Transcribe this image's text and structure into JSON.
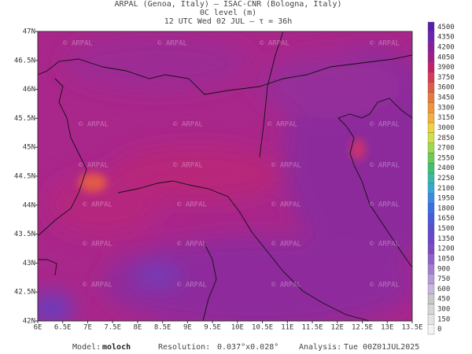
{
  "header": {
    "line1": "ARPAL (Genoa, Italy)  –  ISAC-CNR (Bologna, Italy)",
    "line2": "0C level (m)",
    "line3": "12 UTC Wed 02 JUL  –  τ = 36h"
  },
  "x_axis_labels": [
    "6E",
    "6.5E",
    "7E",
    "7.5E",
    "8E",
    "8.5E",
    "9E",
    "9.5E",
    "10E",
    "10.5E",
    "11E",
    "11.5E",
    "12E",
    "12.5E",
    "13E",
    "13.5E"
  ],
  "y_axis_labels": [
    "47N",
    "46.5N",
    "46N",
    "45.5N",
    "45N",
    "44.5N",
    "44N",
    "43.5N",
    "43N",
    "42.5N",
    "42N"
  ],
  "colorbar_levels": [
    4500,
    4350,
    4200,
    4050,
    3900,
    3750,
    3600,
    3450,
    3300,
    3150,
    3000,
    2850,
    2700,
    2550,
    2400,
    2250,
    2100,
    1950,
    1800,
    1650,
    1500,
    1350,
    1200,
    1050,
    900,
    750,
    600,
    450,
    300,
    150,
    0
  ],
  "watermark": "© ARPAL",
  "footer": {
    "model_label": "Model:",
    "model": "moloch",
    "resolution_label": "Resolution:",
    "resolution": "0.037°x0.028°",
    "analysis_label": "Analysis:",
    "analysis": "Tue 00Z01JUL2025"
  }
}
